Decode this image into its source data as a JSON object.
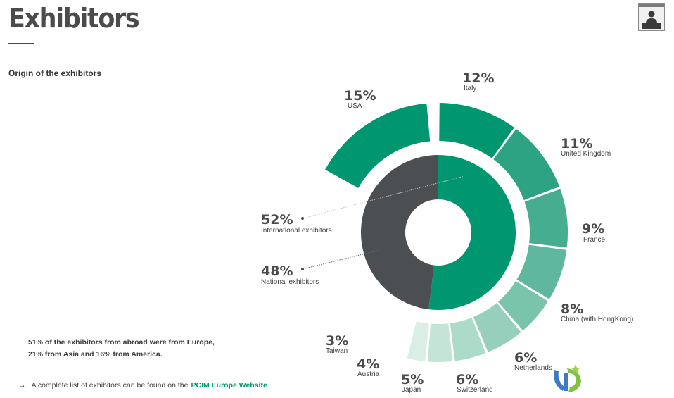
{
  "header": {
    "title": "Exhibitors",
    "subtitle": "Origin of the exhibitors",
    "presenter_icon": "presenter-icon"
  },
  "note": {
    "line1": "51% of the exhibitors from abroad were from Europe,",
    "line2": "21% from Asia and 16% from America."
  },
  "footer": {
    "arrow": "→",
    "text": "A complete list of exhibitors can be found on the",
    "link_label": "PCIM Europe Website"
  },
  "logo_icon": "brand-logo-icon",
  "chart_data": [
    {
      "type": "pie",
      "title": "",
      "series": [
        {
          "name": "International exhibitors",
          "value": 52,
          "value_label": "52%",
          "color": "#00966f"
        },
        {
          "name": "National exhibitors",
          "value": 48,
          "value_label": "48%",
          "color": "#4c4f52"
        }
      ]
    },
    {
      "type": "pie",
      "title": "",
      "series": [
        {
          "name": "Italy",
          "value": 12,
          "value_label": "12%",
          "color": "#00966f"
        },
        {
          "name": "United Kingdom",
          "value": 11,
          "value_label": "11%",
          "color": "#2ea384"
        },
        {
          "name": "France",
          "value": 9,
          "value_label": "9%",
          "color": "#46ad91"
        },
        {
          "name": "China (with HongKong)",
          "value": 8,
          "value_label": "8%",
          "color": "#5fb89d"
        },
        {
          "name": "Netherlands",
          "value": 6,
          "value_label": "6%",
          "color": "#7ac4ab"
        },
        {
          "name": "Switzerland",
          "value": 6,
          "value_label": "6%",
          "color": "#96d0bc"
        },
        {
          "name": "Japan",
          "value": 5,
          "value_label": "5%",
          "color": "#acdbc9"
        },
        {
          "name": "Austria",
          "value": 4,
          "value_label": "4%",
          "color": "#c3e4d7"
        },
        {
          "name": "Taiwan",
          "value": 3,
          "value_label": "3%",
          "color": "#d9eee5"
        },
        {
          "name": "USA",
          "value": 15,
          "value_label": "15%",
          "color": "#00966f"
        }
      ]
    }
  ]
}
